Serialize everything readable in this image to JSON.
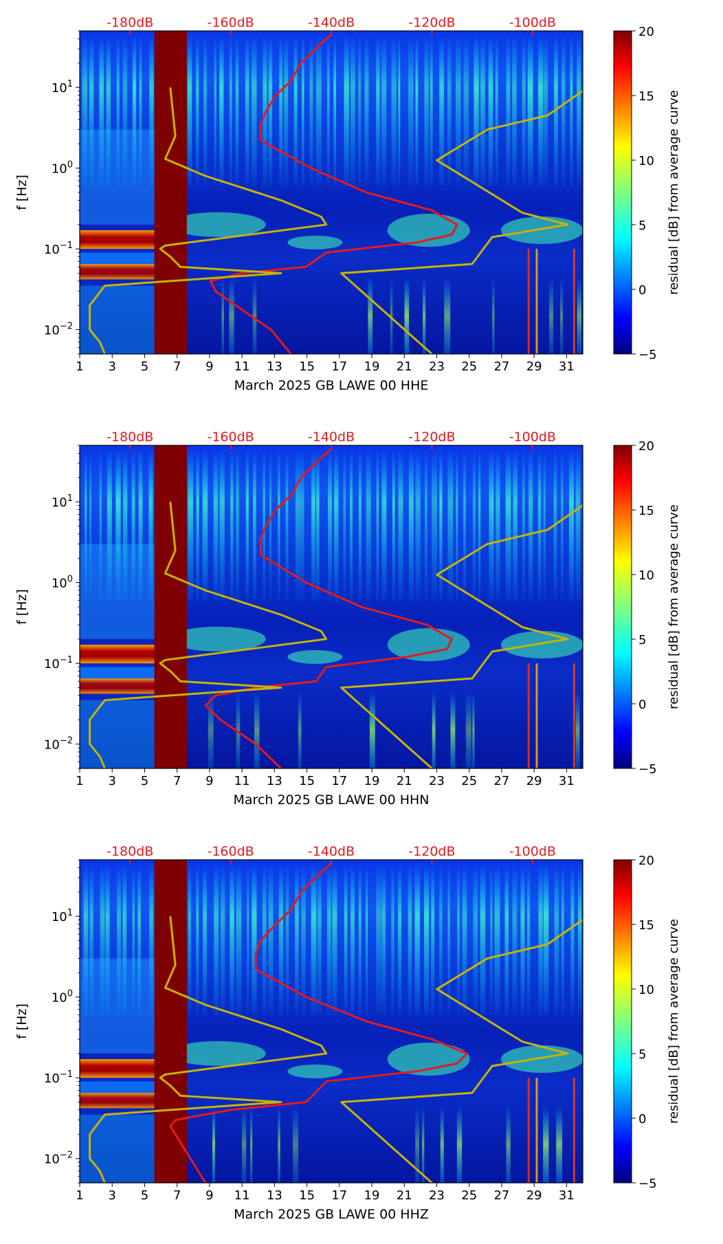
{
  "chart_data": [
    {
      "type": "heatmap",
      "xlabel": "March 2025 GB LAWE 00 HHE",
      "ylabel": "f [Hz]",
      "x_ticks": [
        "1",
        "3",
        "5",
        "7",
        "9",
        "11",
        "13",
        "15",
        "17",
        "19",
        "21",
        "23",
        "25",
        "27",
        "29",
        "31"
      ],
      "x_range": [
        1,
        32
      ],
      "y_scale": "log",
      "y_range": [
        0.005,
        50
      ],
      "y_ticks": [
        {
          "base": "10",
          "exp": "1",
          "value": 10
        },
        {
          "base": "10",
          "exp": "0",
          "value": 1
        },
        {
          "base": "10",
          "exp": "−1",
          "value": 0.1
        },
        {
          "base": "10",
          "exp": "−2",
          "value": 0.01
        }
      ],
      "top_axis": {
        "ticks": [
          "-180dB",
          "-160dB",
          "-140dB",
          "-120dB",
          "-100dB"
        ],
        "range": [
          -190,
          -90
        ],
        "color": "#e41a1c"
      },
      "colorbar": {
        "label": "residual [dB] from average curve",
        "ticks": [
          "20",
          "15",
          "10",
          "5",
          "0",
          "−5"
        ],
        "range": [
          -5,
          20
        ]
      },
      "data_gap": {
        "x_start": 5.6,
        "x_end": 7.6
      },
      "series": [
        {
          "name": "red",
          "color": "#e41a1c",
          "points": [
            [
              -148,
              0.005
            ],
            [
              -152,
              0.01
            ],
            [
              -159,
              0.02
            ],
            [
              -163,
              0.03
            ],
            [
              -164,
              0.04
            ],
            [
              -158,
              0.05
            ],
            [
              -145,
              0.06
            ],
            [
              -141,
              0.09
            ],
            [
              -123,
              0.12
            ],
            [
              -116,
              0.15
            ],
            [
              -115,
              0.2
            ],
            [
              -120,
              0.3
            ],
            [
              -133,
              0.5
            ],
            [
              -144,
              1
            ],
            [
              -154,
              2.2
            ],
            [
              -154,
              3.5
            ],
            [
              -153,
              5
            ],
            [
              -151,
              8
            ],
            [
              -148,
              12
            ],
            [
              -146,
              20
            ],
            [
              -142,
              35
            ],
            [
              -140,
              45
            ]
          ]
        },
        {
          "name": "yellow",
          "color": "#c8b400",
          "points": [
            [
              -185,
              0.005
            ],
            [
              -186,
              0.007
            ],
            [
              -188,
              0.01
            ],
            [
              -188,
              0.02
            ],
            [
              -185,
              0.035
            ],
            [
              -150,
              0.05
            ],
            [
              -170,
              0.06
            ],
            [
              -172,
              0.08
            ],
            [
              -174,
              0.1
            ],
            [
              -173,
              0.11
            ],
            [
              -141,
              0.2
            ],
            [
              -142,
              0.25
            ],
            [
              -150,
              0.4
            ],
            [
              -165,
              0.8
            ],
            [
              -173,
              1.3
            ],
            [
              -171,
              2.5
            ],
            [
              -172,
              10
            ],
            [
              -120,
              0.005
            ],
            [
              -138,
              0.05
            ],
            [
              -112,
              0.065
            ],
            [
              -108,
              0.14
            ],
            [
              -93,
              0.2
            ],
            [
              -102,
              0.28
            ],
            [
              -119,
              1.25
            ],
            [
              -109,
              3
            ],
            [
              -97,
              4.5
            ],
            [
              -89,
              10
            ]
          ]
        }
      ]
    },
    {
      "type": "heatmap",
      "xlabel": "March 2025 GB LAWE 00 HHN",
      "ylabel": "f [Hz]",
      "x_ticks": [
        "1",
        "3",
        "5",
        "7",
        "9",
        "11",
        "13",
        "15",
        "17",
        "19",
        "21",
        "23",
        "25",
        "27",
        "29",
        "31"
      ],
      "x_range": [
        1,
        32
      ],
      "y_scale": "log",
      "y_range": [
        0.005,
        50
      ],
      "y_ticks": [
        {
          "base": "10",
          "exp": "1",
          "value": 10
        },
        {
          "base": "10",
          "exp": "0",
          "value": 1
        },
        {
          "base": "10",
          "exp": "−1",
          "value": 0.1
        },
        {
          "base": "10",
          "exp": "−2",
          "value": 0.01
        }
      ],
      "top_axis": {
        "ticks": [
          "-180dB",
          "-160dB",
          "-140dB",
          "-120dB",
          "-100dB"
        ],
        "range": [
          -190,
          -90
        ],
        "color": "#e41a1c"
      },
      "colorbar": {
        "label": "residual [dB] from average curve",
        "ticks": [
          "20",
          "15",
          "10",
          "5",
          "0",
          "−5"
        ],
        "range": [
          -5,
          20
        ]
      },
      "data_gap": {
        "x_start": 5.6,
        "x_end": 7.6
      },
      "series": [
        {
          "name": "red",
          "color": "#e41a1c",
          "points": [
            [
              -150,
              0.005
            ],
            [
              -155,
              0.01
            ],
            [
              -162,
              0.02
            ],
            [
              -165,
              0.03
            ],
            [
              -163,
              0.04
            ],
            [
              -155,
              0.05
            ],
            [
              -143,
              0.06
            ],
            [
              -141,
              0.09
            ],
            [
              -125,
              0.12
            ],
            [
              -117,
              0.15
            ],
            [
              -116,
              0.2
            ],
            [
              -121,
              0.3
            ],
            [
              -134,
              0.5
            ],
            [
              -145,
              1
            ],
            [
              -154,
              2.2
            ],
            [
              -154,
              3.5
            ],
            [
              -153,
              5
            ],
            [
              -151,
              8
            ],
            [
              -148,
              12
            ],
            [
              -146,
              20
            ],
            [
              -142,
              35
            ],
            [
              -140,
              45
            ]
          ]
        },
        {
          "name": "yellow",
          "color": "#c8b400",
          "points": [
            [
              -185,
              0.005
            ],
            [
              -186,
              0.007
            ],
            [
              -188,
              0.01
            ],
            [
              -188,
              0.02
            ],
            [
              -185,
              0.035
            ],
            [
              -150,
              0.05
            ],
            [
              -170,
              0.06
            ],
            [
              -172,
              0.08
            ],
            [
              -174,
              0.1
            ],
            [
              -173,
              0.11
            ],
            [
              -141,
              0.2
            ],
            [
              -142,
              0.25
            ],
            [
              -150,
              0.4
            ],
            [
              -165,
              0.8
            ],
            [
              -173,
              1.3
            ],
            [
              -171,
              2.5
            ],
            [
              -172,
              10
            ],
            [
              -120,
              0.005
            ],
            [
              -138,
              0.05
            ],
            [
              -112,
              0.065
            ],
            [
              -108,
              0.14
            ],
            [
              -93,
              0.2
            ],
            [
              -102,
              0.28
            ],
            [
              -119,
              1.25
            ],
            [
              -109,
              3
            ],
            [
              -97,
              4.5
            ],
            [
              -89,
              10
            ]
          ]
        }
      ]
    },
    {
      "type": "heatmap",
      "xlabel": "March 2025 GB LAWE 00 HHZ",
      "ylabel": "f [Hz]",
      "x_ticks": [
        "1",
        "3",
        "5",
        "7",
        "9",
        "11",
        "13",
        "15",
        "17",
        "19",
        "21",
        "23",
        "25",
        "27",
        "29",
        "31"
      ],
      "x_range": [
        1,
        32
      ],
      "y_scale": "log",
      "y_range": [
        0.005,
        50
      ],
      "y_ticks": [
        {
          "base": "10",
          "exp": "1",
          "value": 10
        },
        {
          "base": "10",
          "exp": "0",
          "value": 1
        },
        {
          "base": "10",
          "exp": "−1",
          "value": 0.1
        },
        {
          "base": "10",
          "exp": "−2",
          "value": 0.01
        }
      ],
      "top_axis": {
        "ticks": [
          "-180dB",
          "-160dB",
          "-140dB",
          "-120dB",
          "-100dB"
        ],
        "range": [
          -190,
          -90
        ],
        "color": "#e41a1c"
      },
      "colorbar": {
        "label": "residual [dB] from average curve",
        "ticks": [
          "20",
          "15",
          "10",
          "5",
          "0",
          "−5"
        ],
        "range": [
          -5,
          20
        ]
      },
      "data_gap": {
        "x_start": 5.6,
        "x_end": 7.6
      },
      "series": [
        {
          "name": "red",
          "color": "#e41a1c",
          "points": [
            [
              -165,
              0.005
            ],
            [
              -168,
              0.01
            ],
            [
              -171,
              0.02
            ],
            [
              -172,
              0.025
            ],
            [
              -171,
              0.03
            ],
            [
              -160,
              0.04
            ],
            [
              -145,
              0.05
            ],
            [
              -141,
              0.09
            ],
            [
              -123,
              0.12
            ],
            [
              -115,
              0.15
            ],
            [
              -113,
              0.2
            ],
            [
              -120,
              0.3
            ],
            [
              -133,
              0.5
            ],
            [
              -145,
              1
            ],
            [
              -155,
              2.2
            ],
            [
              -155,
              3.5
            ],
            [
              -154,
              5
            ],
            [
              -151,
              8
            ],
            [
              -148,
              12
            ],
            [
              -146,
              20
            ],
            [
              -142,
              35
            ],
            [
              -140,
              45
            ]
          ]
        },
        {
          "name": "yellow",
          "color": "#c8b400",
          "points": [
            [
              -185,
              0.005
            ],
            [
              -186,
              0.007
            ],
            [
              -188,
              0.01
            ],
            [
              -188,
              0.02
            ],
            [
              -185,
              0.035
            ],
            [
              -150,
              0.05
            ],
            [
              -170,
              0.06
            ],
            [
              -172,
              0.08
            ],
            [
              -174,
              0.1
            ],
            [
              -173,
              0.11
            ],
            [
              -141,
              0.2
            ],
            [
              -142,
              0.25
            ],
            [
              -150,
              0.4
            ],
            [
              -165,
              0.8
            ],
            [
              -173,
              1.3
            ],
            [
              -171,
              2.5
            ],
            [
              -172,
              10
            ],
            [
              -120,
              0.005
            ],
            [
              -138,
              0.05
            ],
            [
              -112,
              0.065
            ],
            [
              -108,
              0.14
            ],
            [
              -93,
              0.2
            ],
            [
              -102,
              0.28
            ],
            [
              -119,
              1.25
            ],
            [
              -109,
              3
            ],
            [
              -97,
              4.5
            ],
            [
              -89,
              10
            ]
          ]
        }
      ]
    }
  ]
}
